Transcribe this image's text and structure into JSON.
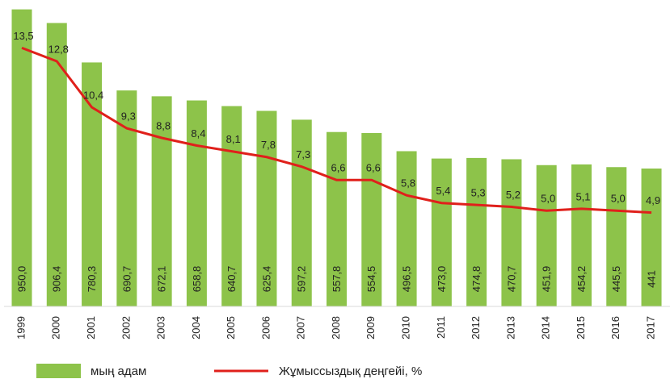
{
  "chart_data": {
    "type": "bar_line",
    "categories": [
      "1999",
      "2000",
      "2001",
      "2002",
      "2003",
      "2004",
      "2005",
      "2006",
      "2007",
      "2008",
      "2009",
      "2010",
      "2011",
      "2012",
      "2013",
      "2014",
      "2015",
      "2016",
      "2017"
    ],
    "series": [
      {
        "name": "мың адам",
        "color": "#8dc34a",
        "type": "bar",
        "values": [
          950.0,
          906.4,
          780.3,
          690.7,
          672.1,
          658.8,
          640.7,
          625.4,
          597.2,
          557.8,
          554.5,
          496.5,
          473.0,
          474.8,
          470.7,
          451.9,
          454.2,
          445.5,
          441
        ],
        "value_labels": [
          "950,0",
          "906,4",
          "780,3",
          "690,7",
          "672,1",
          "658,8",
          "640,7",
          "625,4",
          "597,2",
          "557,8",
          "554,5",
          "496,5",
          "473,0",
          "474,8",
          "470,7",
          "451,9",
          "454,2",
          "445,5",
          "441"
        ]
      },
      {
        "name": "Жұмыссыздық деңгейі, %",
        "color": "#e0201b",
        "type": "line",
        "axis": "y2",
        "values": [
          13.5,
          12.8,
          10.4,
          9.3,
          8.8,
          8.4,
          8.1,
          7.8,
          7.3,
          6.6,
          6.6,
          5.8,
          5.4,
          5.3,
          5.2,
          5.0,
          5.1,
          5.0,
          4.9
        ],
        "value_labels": [
          "13,5",
          "12,8",
          "10,4",
          "9,3",
          "8,8",
          "8,4",
          "8,1",
          "7,8",
          "7,3",
          "6,6",
          "6,6",
          "5,8",
          "5,4",
          "5,3",
          "5,2",
          "5,0",
          "5,1",
          "5,0",
          "4,9"
        ]
      }
    ],
    "ylim": [
      0,
      980
    ],
    "y2lim": [
      0,
      16
    ]
  }
}
